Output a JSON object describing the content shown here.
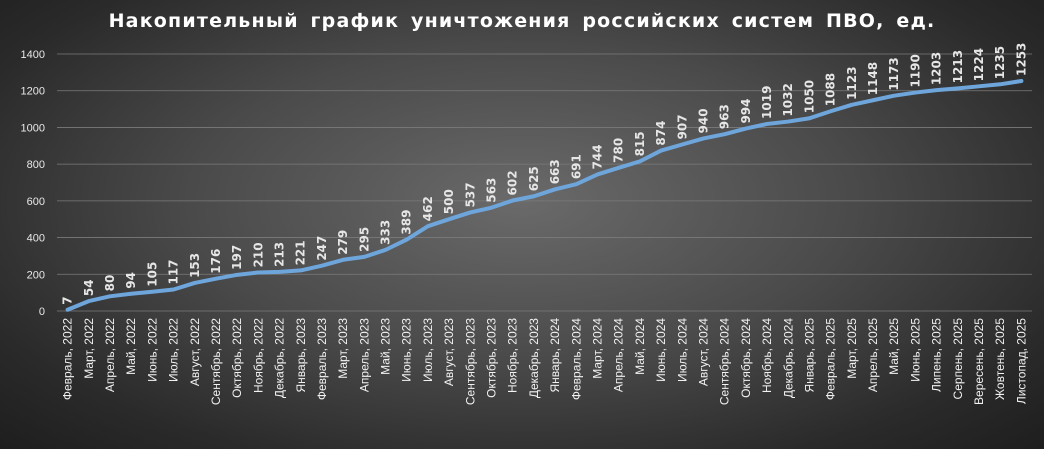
{
  "chart_data": {
    "type": "line",
    "title": "Накопительный график уничтожения российских систем ПВО, ед.",
    "xlabel": "",
    "ylabel": "",
    "ylim": [
      0,
      1400
    ],
    "yticks": [
      0,
      200,
      400,
      600,
      800,
      1000,
      1200,
      1400
    ],
    "grid": true,
    "legend": "none",
    "colors": {
      "line": "#6ea6dc",
      "background": "#4a4a4a",
      "text": "#ffffff"
    },
    "categories": [
      "Февраль, 2022",
      "Март, 2022",
      "Апрель, 2022",
      "Май, 2022",
      "Июнь, 2022",
      "Июль, 2022",
      "Август, 2022",
      "Сентябрь, 2022",
      "Октябрь, 2022",
      "Ноябрь, 2022",
      "Декабрь, 2022",
      "Январь, 2023",
      "Февраль, 2023",
      "Март, 2023",
      "Апрель, 2023",
      "Май, 2023",
      "Июнь, 2023",
      "Июль, 2023",
      "Август, 2023",
      "Сентябрь, 2023",
      "Октябрь, 2023",
      "Ноябрь, 2023",
      "Декабрь, 2023",
      "Январь, 2024",
      "Февраль, 2024",
      "Март, 2024",
      "Апрель, 2024",
      "Май, 2024",
      "Июнь, 2024",
      "Июль, 2024",
      "Август, 2024",
      "Сентябрь, 2024",
      "Октябрь, 2024",
      "Ноябрь, 2024",
      "Декабрь, 2024",
      "Январь, 2025",
      "Февраль, 2025",
      "Март, 2025",
      "Апрель, 2025",
      "Май, 2025",
      "Июнь, 2025",
      "Липень, 2025",
      "Серпень, 2025",
      "Вересень, 2025",
      "Жовтень, 2025",
      "Листопад, 2025"
    ],
    "series": [
      {
        "values": [
          7,
          54,
          80,
          94,
          105,
          117,
          153,
          176,
          197,
          210,
          213,
          221,
          247,
          279,
          295,
          333,
          389,
          462,
          500,
          537,
          563,
          602,
          625,
          663,
          691,
          744,
          780,
          815,
          874,
          907,
          940,
          963,
          994,
          1019,
          1032,
          1050,
          1088,
          1123,
          1148,
          1173,
          1190,
          1203,
          1213,
          1224,
          1235,
          1253
        ]
      }
    ]
  }
}
